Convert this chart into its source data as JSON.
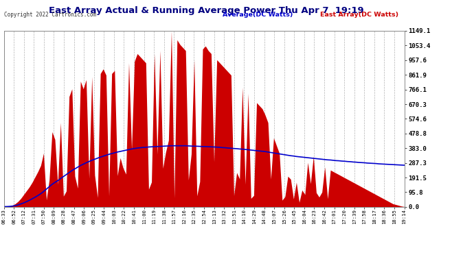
{
  "title": "East Array Actual & Running Average Power Thu Apr 7  19:19",
  "copyright": "Copyright 2022 Cartronics.com",
  "legend_avg": "Average(DC Watts)",
  "legend_east": "East Array(DC Watts)",
  "yticks": [
    0.0,
    95.8,
    191.5,
    287.3,
    383.0,
    478.8,
    574.6,
    670.3,
    766.1,
    861.9,
    957.6,
    1053.4,
    1149.1
  ],
  "ymax": 1149.1,
  "bg_color": "#ffffff",
  "grid_color": "#aaaaaa",
  "fill_color": "#cc0000",
  "avg_color": "#0000cc",
  "title_color": "#000080",
  "xtick_labels": [
    "06:33",
    "06:52",
    "07:12",
    "07:31",
    "07:50",
    "08:09",
    "08:28",
    "08:47",
    "09:06",
    "09:25",
    "09:44",
    "10:03",
    "10:22",
    "10:41",
    "11:00",
    "11:19",
    "11:38",
    "11:57",
    "12:16",
    "12:35",
    "12:54",
    "13:13",
    "13:32",
    "13:51",
    "14:10",
    "14:29",
    "14:48",
    "15:07",
    "15:26",
    "15:45",
    "16:04",
    "16:23",
    "16:42",
    "17:01",
    "17:20",
    "17:39",
    "17:58",
    "18:17",
    "18:36",
    "18:55",
    "19:14"
  ],
  "east_values": [
    2,
    3,
    5,
    10,
    20,
    35,
    55,
    80,
    105,
    130,
    160,
    195,
    230,
    270,
    350,
    430,
    500,
    490,
    440,
    380,
    550,
    610,
    660,
    720,
    770,
    760,
    800,
    820,
    770,
    830,
    810,
    850,
    790,
    840,
    870,
    900,
    860,
    850,
    870,
    890,
    910,
    870,
    900,
    920,
    940,
    960,
    950,
    1000,
    980,
    960,
    940,
    970,
    990,
    1000,
    1010,
    1020,
    1050,
    1080,
    1100,
    1149,
    1120,
    1090,
    1060,
    1040,
    1020,
    1000,
    980,
    960,
    990,
    1010,
    1030,
    1050,
    1020,
    1000,
    980,
    960,
    940,
    920,
    900,
    880,
    860,
    840,
    820,
    800,
    780,
    760,
    740,
    720,
    700,
    680,
    660,
    640,
    600,
    550,
    500,
    450,
    400,
    350,
    300,
    250,
    200,
    180,
    170,
    160,
    200,
    230,
    260,
    290,
    310,
    330,
    310,
    300,
    280,
    260,
    250,
    240,
    230,
    220,
    210,
    200,
    190,
    180,
    170,
    160,
    150,
    140,
    130,
    120,
    110,
    100,
    90,
    80,
    70,
    60,
    50,
    40,
    30,
    20,
    15,
    10,
    5,
    2
  ],
  "avg_values": [
    2,
    2,
    3,
    5,
    8,
    13,
    19,
    26,
    34,
    43,
    53,
    63,
    74,
    86,
    100,
    116,
    132,
    147,
    160,
    171,
    185,
    198,
    211,
    224,
    237,
    248,
    259,
    270,
    279,
    288,
    296,
    304,
    311,
    318,
    325,
    331,
    337,
    343,
    348,
    353,
    358,
    362,
    366,
    370,
    374,
    378,
    381,
    384,
    386,
    388,
    389,
    391,
    392,
    393,
    394,
    395,
    396,
    397,
    398,
    399,
    399,
    399,
    399,
    399,
    399,
    398,
    397,
    396,
    396,
    395,
    394,
    394,
    393,
    392,
    391,
    390,
    389,
    387,
    386,
    384,
    383,
    381,
    380,
    378,
    377,
    375,
    373,
    371,
    369,
    367,
    365,
    363,
    361,
    358,
    355,
    352,
    349,
    346,
    343,
    340,
    337,
    334,
    332,
    329,
    327,
    325,
    323,
    321,
    319,
    317,
    315,
    313,
    311,
    309,
    307,
    306,
    304,
    302,
    301,
    299,
    298,
    296,
    295,
    293,
    292,
    290,
    289,
    288,
    286,
    285,
    284,
    283,
    281,
    280,
    279,
    278,
    277,
    276,
    275,
    274,
    273,
    272
  ]
}
